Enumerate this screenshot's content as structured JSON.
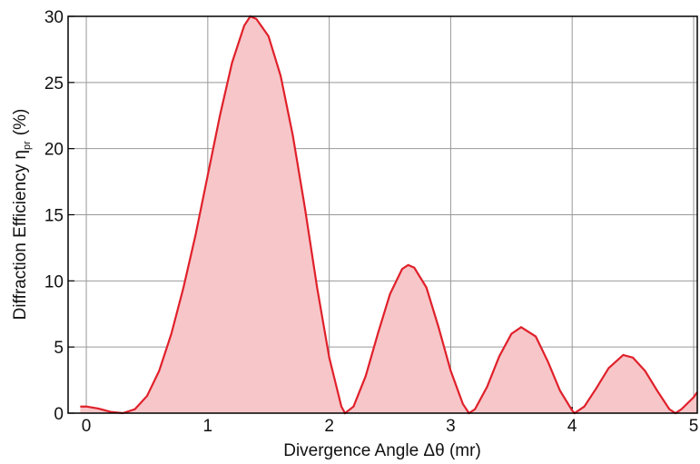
{
  "chart_data": {
    "type": "area",
    "xlabel": "Divergence Angle Δθ (mr)",
    "ylabel": {
      "main": "Diffraction Efficiency η",
      "sub": "pr",
      "unit": "(%)"
    },
    "x": [
      -0.05,
      0,
      0.1,
      0.2,
      0.3,
      0.4,
      0.5,
      0.6,
      0.7,
      0.8,
      0.9,
      1.0,
      1.1,
      1.2,
      1.3,
      1.35,
      1.4,
      1.5,
      1.6,
      1.7,
      1.8,
      1.9,
      2.0,
      2.1,
      2.13,
      2.2,
      2.3,
      2.4,
      2.5,
      2.6,
      2.65,
      2.7,
      2.8,
      2.9,
      3.0,
      3.1,
      3.15,
      3.2,
      3.3,
      3.4,
      3.5,
      3.58,
      3.7,
      3.8,
      3.9,
      4.0,
      4.02,
      4.1,
      4.2,
      4.3,
      4.42,
      4.5,
      4.6,
      4.7,
      4.8,
      4.85,
      4.9,
      5.0,
      5.03
    ],
    "series": [
      {
        "color": "#e0202a",
        "fill": "#f7c6c9",
        "values": [
          0.5,
          0.5,
          0.35,
          0.1,
          0.0,
          0.3,
          1.3,
          3.2,
          6,
          9.5,
          13.5,
          18,
          22.5,
          26.5,
          29.3,
          30,
          29.8,
          28.5,
          25.5,
          21,
          15.5,
          9.5,
          4.2,
          0.5,
          0,
          0.5,
          2.8,
          6,
          9,
          10.9,
          11.2,
          11.0,
          9.5,
          6.5,
          3.2,
          0.7,
          0,
          0.3,
          2,
          4.3,
          6,
          6.5,
          5.8,
          3.9,
          1.7,
          0.2,
          0,
          0.5,
          1.9,
          3.4,
          4.4,
          4.2,
          3.2,
          1.7,
          0.3,
          0,
          0.3,
          1.2,
          1.6
        ]
      }
    ],
    "xlim": [
      -0.15,
      5.03
    ],
    "ylim": [
      0,
      30
    ],
    "xticks": [
      0,
      1,
      2,
      3,
      4,
      5
    ],
    "yticks": [
      0,
      5,
      10,
      15,
      20,
      25,
      30
    ],
    "grid": true
  }
}
